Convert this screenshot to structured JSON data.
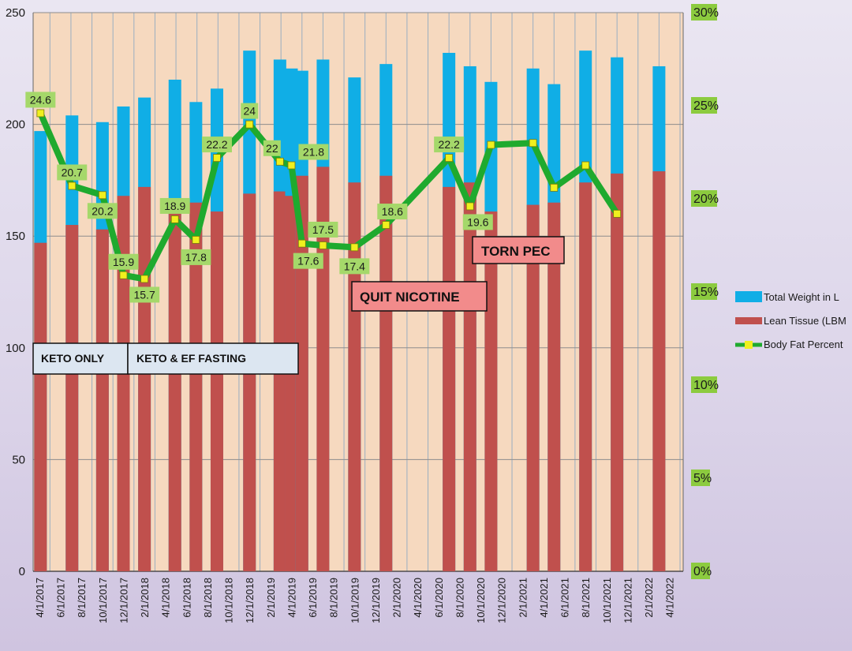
{
  "chart_data": {
    "type": "bar",
    "categories": [
      "4/1/2017",
      "6/1/2017",
      "8/1/2017",
      "10/1/2017",
      "12/1/2017",
      "2/1/2018",
      "4/1/2018",
      "6/1/2018",
      "8/1/2018",
      "10/1/2018",
      "12/1/2018",
      "2/1/2019",
      "4/1/2019",
      "6/1/2019",
      "8/1/2019",
      "10/1/2019",
      "12/1/2019",
      "2/1/2020",
      "4/1/2020",
      "6/1/2020",
      "8/1/2020",
      "10/1/2020",
      "12/1/2020",
      "2/1/2021",
      "4/1/2021",
      "6/1/2021",
      "8/1/2021",
      "10/1/2021",
      "12/1/2021",
      "2/1/2022",
      "4/1/2022"
    ],
    "bars": [
      {
        "x": 0.05,
        "total": 197,
        "lean": 147
      },
      {
        "x": 1.55,
        "total": 204,
        "lean": 155
      },
      {
        "x": 3.0,
        "total": 201,
        "lean": 153
      },
      {
        "x": 4.0,
        "total": 208,
        "lean": 168
      },
      {
        "x": 5.0,
        "total": 212,
        "lean": 172
      },
      {
        "x": 6.45,
        "total": 220,
        "lean": 162
      },
      {
        "x": 7.45,
        "total": 210,
        "lean": 165
      },
      {
        "x": 8.45,
        "total": 216,
        "lean": 161
      },
      {
        "x": 10.0,
        "total": 233,
        "lean": 169
      },
      {
        "x": 11.45,
        "total": 229,
        "lean": 170
      },
      {
        "x": 12.0,
        "total": 225,
        "lean": 168
      },
      {
        "x": 12.5,
        "total": 224,
        "lean": 177
      },
      {
        "x": 13.5,
        "total": 229,
        "lean": 181
      },
      {
        "x": 15.0,
        "total": 221,
        "lean": 174
      },
      {
        "x": 16.5,
        "total": 227,
        "lean": 177
      },
      {
        "x": 19.5,
        "total": 232,
        "lean": 172
      },
      {
        "x": 20.5,
        "total": 226,
        "lean": 174
      },
      {
        "x": 21.5,
        "total": 219,
        "lean": 161
      },
      {
        "x": 23.5,
        "total": 225,
        "lean": 164
      },
      {
        "x": 24.5,
        "total": 218,
        "lean": 165
      },
      {
        "x": 26.0,
        "total": 233,
        "lean": 174
      },
      {
        "x": 27.5,
        "total": 230,
        "lean": 178
      },
      {
        "x": 29.5,
        "total": 226,
        "lean": 179
      }
    ],
    "bodyfat": [
      {
        "x": 0.05,
        "v": 24.6,
        "label": "24.6"
      },
      {
        "x": 1.55,
        "v": 20.7,
        "label": "20.7"
      },
      {
        "x": 3.0,
        "v": 20.2,
        "label": "20.2"
      },
      {
        "x": 4.0,
        "v": 15.9,
        "label": "15.9"
      },
      {
        "x": 5.0,
        "v": 15.7,
        "label": "15.7"
      },
      {
        "x": 6.45,
        "v": 18.9,
        "label": "18.9"
      },
      {
        "x": 7.45,
        "v": 17.8,
        "label": "17.8"
      },
      {
        "x": 8.45,
        "v": 22.2,
        "label": "22.2"
      },
      {
        "x": 10.0,
        "v": 24.0,
        "label": "24"
      },
      {
        "x": 11.45,
        "v": 22.0,
        "label": "22"
      },
      {
        "x": 12.0,
        "v": 21.8,
        "label": "21.8"
      },
      {
        "x": 12.5,
        "v": 17.6,
        "label": "17.6"
      },
      {
        "x": 13.5,
        "v": 17.5,
        "label": "17.5"
      },
      {
        "x": 15.0,
        "v": 17.4,
        "label": "17.4"
      },
      {
        "x": 16.5,
        "v": 18.6,
        "label": "18.6"
      },
      {
        "x": 19.5,
        "v": 22.2,
        "label": "22.2"
      },
      {
        "x": 20.5,
        "v": 19.6,
        "label": "19.6"
      },
      {
        "x": 21.5,
        "v": 22.9,
        "label": ""
      },
      {
        "x": 23.5,
        "v": 23.0,
        "label": ""
      },
      {
        "x": 24.5,
        "v": 20.6,
        "label": ""
      },
      {
        "x": 26.0,
        "v": 21.8,
        "label": ""
      },
      {
        "x": 27.5,
        "v": 19.2,
        "label": ""
      }
    ],
    "y_left": {
      "min": 0,
      "max": 250,
      "ticks": [
        0,
        50,
        100,
        150,
        200,
        250
      ]
    },
    "y_right": {
      "min": 0,
      "max": 30,
      "ticks": [
        "0%",
        "5%",
        "10%",
        "15%",
        "20%",
        "25%",
        "30%"
      ]
    },
    "legend": {
      "position": "right",
      "items": [
        "Total Weight in L",
        "Lean Tissue (LBM",
        "Body Fat Percent"
      ]
    },
    "annotations": [
      "KETO ONLY",
      "KETO & EF FASTING",
      "QUIT NICOTINE",
      "TORN PEC"
    ],
    "colors": {
      "plot_bg": "#f6d9bf",
      "total": "#10aee6",
      "lean": "#c0504d",
      "line": "#1faa2e",
      "marker": "#f0f01e",
      "label_box": "#a5d86a",
      "pct_box": "#8ccb3f",
      "annotation_box": "#dce6f1",
      "annotation_box_red": "#f28b8b"
    },
    "grid": true
  }
}
